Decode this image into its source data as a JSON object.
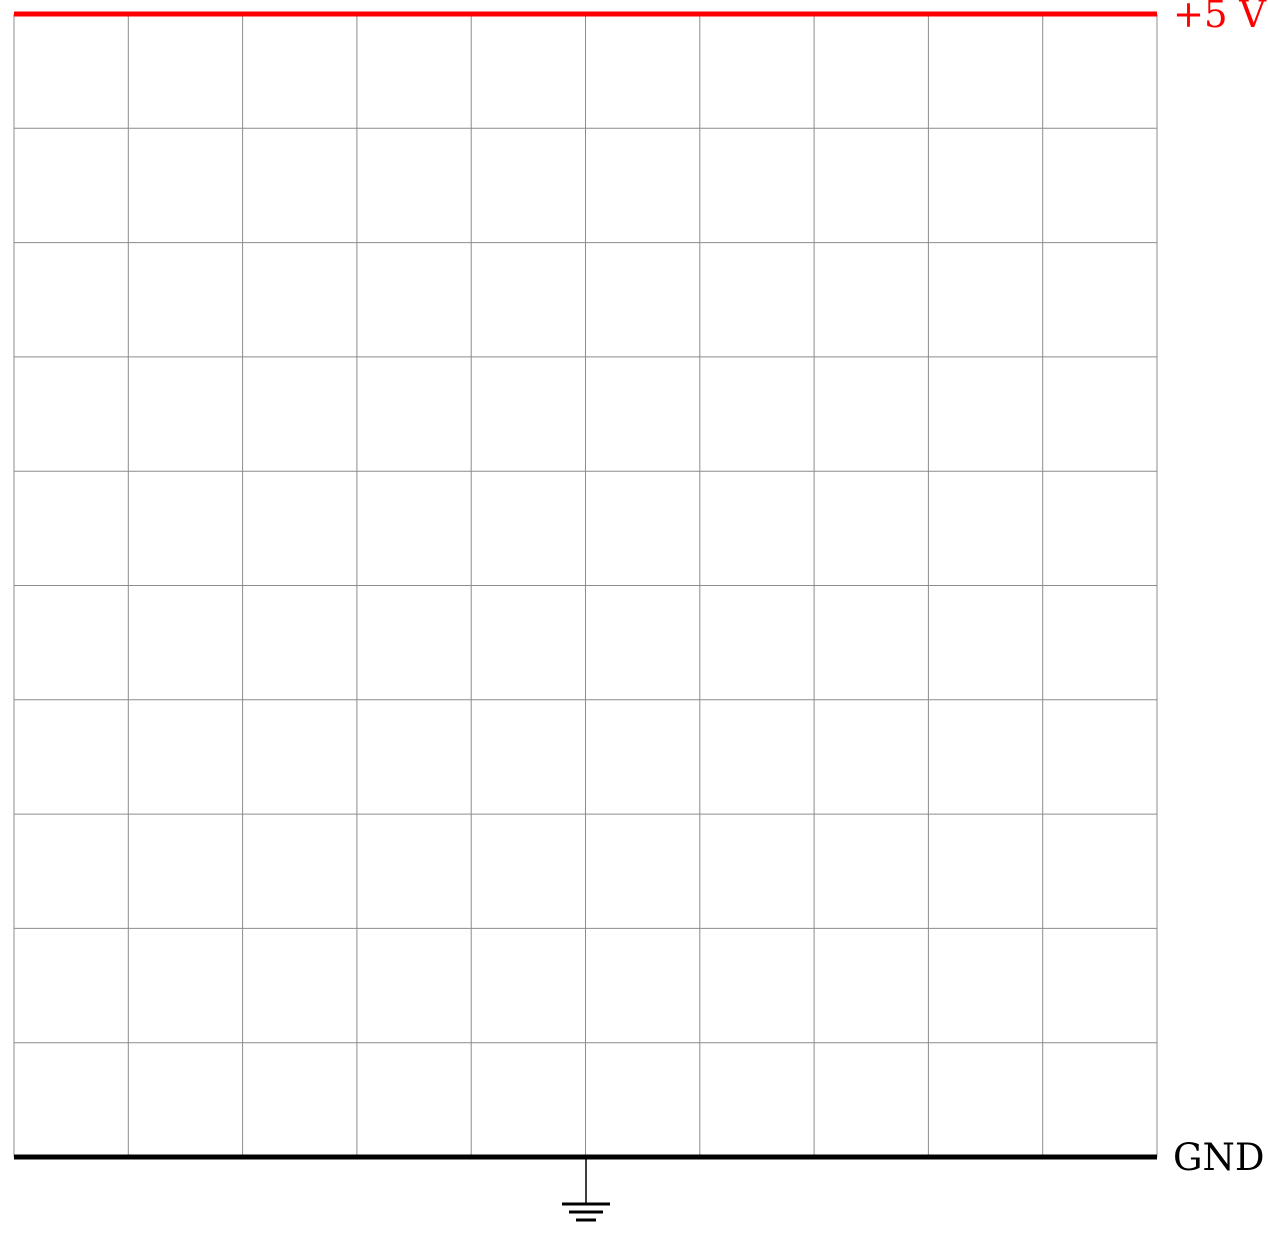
{
  "diagram": {
    "grid": {
      "columns": 10,
      "rows": 10,
      "line_color": "#8c8c8c"
    },
    "top_rail": {
      "label": "+5 V",
      "color": "#ff0000"
    },
    "bottom_rail": {
      "label": "GND",
      "color": "#000000"
    },
    "ground_symbol": {
      "icon": "ground-icon",
      "color": "#000000"
    }
  }
}
